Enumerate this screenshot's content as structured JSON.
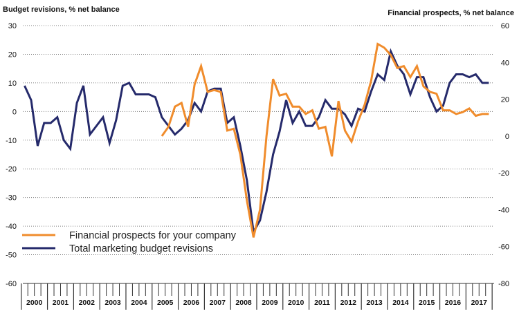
{
  "chart_data": {
    "type": "line",
    "left_axis_title": "Budget revisions, % net balance",
    "right_axis_title": "Financial prospects, % net balance",
    "left_axis": {
      "ylim": [
        -60,
        30
      ],
      "ticks": [
        30,
        20,
        10,
        0,
        -10,
        -20,
        -30,
        -40,
        -50,
        -60
      ]
    },
    "right_axis": {
      "ylim": [
        -80,
        60
      ],
      "ticks": [
        60,
        40,
        20,
        0,
        -20,
        -40,
        -60,
        -80
      ]
    },
    "years": [
      "2000",
      "2001",
      "2002",
      "2003",
      "2004",
      "2005",
      "2006",
      "2007",
      "2008",
      "2009",
      "2010",
      "2011",
      "2012",
      "2013",
      "2014",
      "2015",
      "2016",
      "2017"
    ],
    "x_unit": "quarter index (0 = 2000 Q1)",
    "series": [
      {
        "name": "Total marketing budget revisions",
        "axis": "left",
        "color": "#252a6b",
        "x": [
          0,
          1,
          2,
          3,
          4,
          5,
          6,
          7,
          8,
          9,
          10,
          11,
          12,
          13,
          14,
          15,
          16,
          17,
          18,
          19,
          20,
          21,
          22,
          23,
          24,
          25,
          26,
          27,
          28,
          29,
          30,
          31,
          32,
          33,
          34,
          35,
          36,
          37,
          38,
          39,
          40,
          41,
          42,
          43,
          44,
          45,
          46,
          47,
          48,
          49,
          50,
          51,
          52,
          53,
          54,
          55,
          56,
          57,
          58,
          59,
          60,
          61,
          62,
          63,
          64,
          65,
          66,
          67,
          68,
          69,
          70,
          71
        ],
        "values": [
          9,
          4,
          -12,
          -4,
          -4,
          -2,
          -10,
          -13,
          3,
          9,
          -8,
          -5,
          -2,
          -11,
          -3,
          9,
          10,
          6,
          6,
          6,
          5,
          -2,
          -5,
          -8,
          -6,
          -3,
          3,
          0,
          7,
          8,
          8,
          -4,
          -2,
          -12,
          -24,
          -42,
          -38,
          -28,
          -15,
          -7,
          4,
          -4,
          0,
          -5,
          -5,
          -2,
          4,
          1,
          1,
          -1,
          -5,
          1,
          0,
          7,
          13,
          11,
          21,
          16,
          13,
          6,
          12,
          12,
          5,
          0,
          2,
          10,
          13,
          13,
          12,
          13,
          10,
          10
        ]
      },
      {
        "name": "Financial prospects for your company",
        "axis": "right",
        "color": "#f08c2c",
        "x": [
          21,
          22,
          23,
          24,
          25,
          26,
          27,
          28,
          29,
          30,
          31,
          32,
          33,
          34,
          35,
          36,
          37,
          38,
          39,
          40,
          41,
          42,
          43,
          44,
          45,
          46,
          47,
          48,
          49,
          50,
          51,
          52,
          53,
          54,
          55,
          56,
          57,
          58,
          59,
          60,
          61,
          62,
          63,
          64,
          65,
          66,
          67,
          68,
          69,
          70,
          71
        ],
        "values": [
          0,
          5,
          16,
          18,
          5,
          28,
          38,
          24,
          25,
          24,
          3,
          4,
          -10,
          -35,
          -55,
          -40,
          0,
          31,
          22,
          23,
          16,
          16,
          12,
          14,
          4,
          5,
          -11,
          19,
          3,
          -3,
          8,
          17,
          30,
          50,
          48,
          44,
          37,
          38,
          32,
          38,
          27,
          24,
          23,
          14,
          14,
          12,
          13,
          15,
          11,
          12,
          12
        ]
      }
    ],
    "legend": [
      "Financial prospects for your company",
      "Total marketing budget revisions"
    ],
    "grid": "horizontal dotted"
  }
}
